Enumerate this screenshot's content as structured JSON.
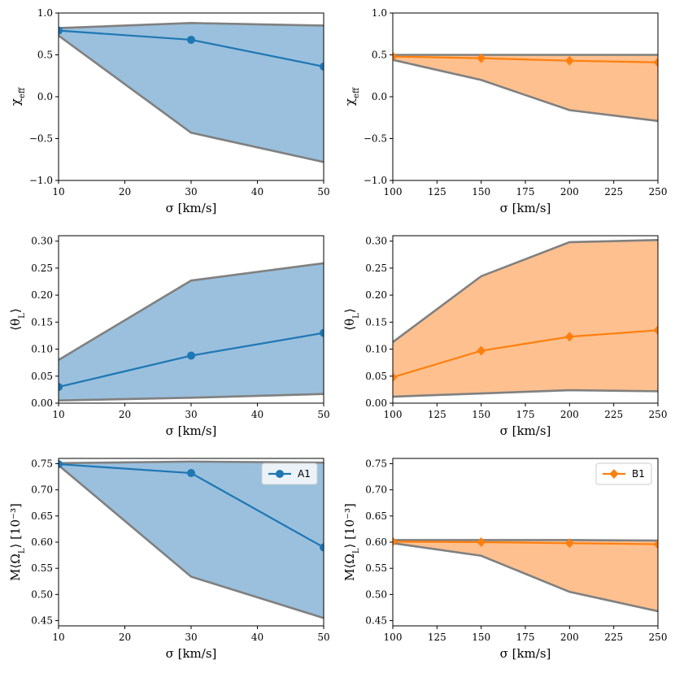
{
  "chart_data": [
    {
      "id": "A_chi",
      "type": "area",
      "x": [
        10,
        30,
        50
      ],
      "xlim": [
        10,
        50
      ],
      "xticks": [
        10,
        20,
        30,
        40,
        50
      ],
      "xtick_labels": [
        "10",
        "20",
        "30",
        "40",
        "50"
      ],
      "ylim": [
        -1.0,
        1.0
      ],
      "yticks": [
        -1.0,
        -0.5,
        0.0,
        0.5,
        1.0
      ],
      "ytick_labels": [
        "−1.0",
        "−0.5",
        "0.0",
        "0.5",
        "1.0"
      ],
      "xlabel": "σ [km/s]",
      "ylabel": "χ_eff",
      "band_upper": [
        0.82,
        0.88,
        0.85
      ],
      "band_lower": [
        0.73,
        -0.43,
        -0.78
      ],
      "series": [
        {
          "name": "A1",
          "values": [
            0.79,
            0.68,
            0.36
          ],
          "marker": "circle"
        }
      ],
      "color": "#1f77b4",
      "fill": "#9ac0dd",
      "legend": null
    },
    {
      "id": "B_chi",
      "type": "area",
      "x": [
        100,
        150,
        200,
        250
      ],
      "xlim": [
        100,
        250
      ],
      "xticks": [
        100,
        125,
        150,
        175,
        200,
        225,
        250
      ],
      "xtick_labels": [
        "100",
        "125",
        "150",
        "175",
        "200",
        "225",
        "250"
      ],
      "ylim": [
        -1.0,
        1.0
      ],
      "yticks": [
        -1.0,
        -0.5,
        0.0,
        0.5,
        1.0
      ],
      "ytick_labels": [
        "−1.0",
        "−0.5",
        "0.0",
        "0.5",
        "1.0"
      ],
      "xlabel": "σ [km/s]",
      "ylabel": "χ_eff",
      "band_upper": [
        0.5,
        0.5,
        0.5,
        0.5
      ],
      "band_lower": [
        0.44,
        0.2,
        -0.16,
        -0.29
      ],
      "series": [
        {
          "name": "B1",
          "values": [
            0.48,
            0.46,
            0.43,
            0.41
          ],
          "marker": "diamond"
        }
      ],
      "color": "#ff7f0e",
      "fill": "#ffc08f",
      "legend": null
    },
    {
      "id": "A_theta",
      "type": "area",
      "x": [
        10,
        30,
        50
      ],
      "xlim": [
        10,
        50
      ],
      "xticks": [
        10,
        20,
        30,
        40,
        50
      ],
      "xtick_labels": [
        "10",
        "20",
        "30",
        "40",
        "50"
      ],
      "ylim": [
        0.0,
        0.31
      ],
      "yticks": [
        0.0,
        0.05,
        0.1,
        0.15,
        0.2,
        0.25,
        0.3
      ],
      "ytick_labels": [
        "0.00",
        "0.05",
        "0.10",
        "0.15",
        "0.20",
        "0.25",
        "0.30"
      ],
      "xlabel": "σ [km/s]",
      "ylabel": "⟨θ_L⟩",
      "band_upper": [
        0.08,
        0.227,
        0.259
      ],
      "band_lower": [
        0.005,
        0.01,
        0.017
      ],
      "series": [
        {
          "name": "A1",
          "values": [
            0.03,
            0.088,
            0.13
          ],
          "marker": "circle"
        }
      ],
      "color": "#1f77b4",
      "fill": "#9ac0dd",
      "legend": null
    },
    {
      "id": "B_theta",
      "type": "area",
      "x": [
        100,
        150,
        200,
        250
      ],
      "xlim": [
        100,
        250
      ],
      "xticks": [
        100,
        125,
        150,
        175,
        200,
        225,
        250
      ],
      "xtick_labels": [
        "100",
        "125",
        "150",
        "175",
        "200",
        "225",
        "250"
      ],
      "ylim": [
        0.0,
        0.31
      ],
      "yticks": [
        0.0,
        0.05,
        0.1,
        0.15,
        0.2,
        0.25,
        0.3
      ],
      "ytick_labels": [
        "0.00",
        "0.05",
        "0.10",
        "0.15",
        "0.20",
        "0.25",
        "0.30"
      ],
      "xlabel": "σ [km/s]",
      "ylabel": "⟨θ_L⟩",
      "band_upper": [
        0.113,
        0.235,
        0.298,
        0.302
      ],
      "band_lower": [
        0.012,
        0.018,
        0.024,
        0.022
      ],
      "series": [
        {
          "name": "B1",
          "values": [
            0.048,
            0.097,
            0.123,
            0.135
          ],
          "marker": "diamond"
        }
      ],
      "color": "#ff7f0e",
      "fill": "#ffc08f",
      "legend": null
    },
    {
      "id": "A_omega",
      "type": "area",
      "x": [
        10,
        30,
        50
      ],
      "xlim": [
        10,
        50
      ],
      "xticks": [
        10,
        20,
        30,
        40,
        50
      ],
      "xtick_labels": [
        "10",
        "20",
        "30",
        "40",
        "50"
      ],
      "ylim": [
        0.44,
        0.76
      ],
      "yticks": [
        0.45,
        0.5,
        0.55,
        0.6,
        0.65,
        0.7,
        0.75
      ],
      "ytick_labels": [
        "0.45",
        "0.50",
        "0.55",
        "0.60",
        "0.65",
        "0.70",
        "0.75"
      ],
      "xlabel": "σ [km/s]",
      "ylabel": "M⟨Ω_L⟩ [10⁻³]",
      "band_upper": [
        0.751,
        0.754,
        0.752
      ],
      "band_lower": [
        0.747,
        0.534,
        0.455
      ],
      "series": [
        {
          "name": "A1",
          "values": [
            0.749,
            0.732,
            0.59
          ],
          "marker": "circle"
        }
      ],
      "color": "#1f77b4",
      "fill": "#9ac0dd",
      "legend": {
        "label": "A1",
        "position": "top-right"
      }
    },
    {
      "id": "B_omega",
      "type": "area",
      "x": [
        100,
        150,
        200,
        250
      ],
      "xlim": [
        100,
        250
      ],
      "xticks": [
        100,
        125,
        150,
        175,
        200,
        225,
        250
      ],
      "xtick_labels": [
        "100",
        "125",
        "150",
        "175",
        "200",
        "225",
        "250"
      ],
      "ylim": [
        0.44,
        0.76
      ],
      "yticks": [
        0.45,
        0.5,
        0.55,
        0.6,
        0.65,
        0.7,
        0.75
      ],
      "ytick_labels": [
        "0.45",
        "0.50",
        "0.55",
        "0.60",
        "0.65",
        "0.70",
        "0.75"
      ],
      "xlabel": "σ [km/s]",
      "ylabel": "M⟨Ω_L⟩ [10⁻³]",
      "band_upper": [
        0.604,
        0.604,
        0.604,
        0.603
      ],
      "band_lower": [
        0.598,
        0.574,
        0.505,
        0.468
      ],
      "series": [
        {
          "name": "B1",
          "values": [
            0.601,
            0.6,
            0.598,
            0.596
          ],
          "marker": "diamond"
        }
      ],
      "color": "#ff7f0e",
      "fill": "#ffc08f",
      "legend": {
        "label": "B1",
        "position": "top-right"
      }
    }
  ]
}
